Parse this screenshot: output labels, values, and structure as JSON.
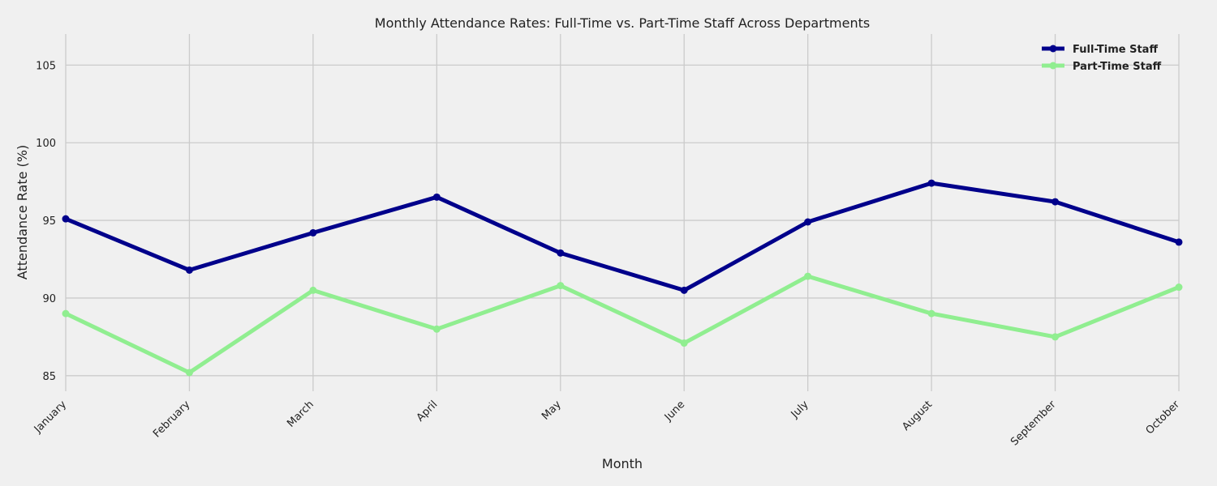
{
  "chart_data": {
    "type": "line",
    "title": "Monthly Attendance Rates: Full-Time vs. Part-Time Staff Across Departments",
    "xlabel": "Month",
    "ylabel": "Attendance Rate (%)",
    "categories": [
      "January",
      "February",
      "March",
      "April",
      "May",
      "June",
      "July",
      "August",
      "September",
      "October"
    ],
    "ylim": [
      84,
      107
    ],
    "yticks": [
      85,
      90,
      95,
      100,
      105
    ],
    "grid": true,
    "legend_position": "top-right",
    "series": [
      {
        "name": "Full-Time Staff",
        "color": "#00008b",
        "values": [
          95.1,
          91.8,
          94.2,
          96.5,
          92.9,
          90.5,
          94.9,
          97.4,
          96.2,
          93.6
        ]
      },
      {
        "name": "Part-Time Staff",
        "color": "#90ee90",
        "values": [
          89.0,
          85.2,
          90.5,
          88.0,
          90.8,
          87.1,
          91.4,
          89.0,
          87.5,
          90.7
        ]
      }
    ]
  }
}
